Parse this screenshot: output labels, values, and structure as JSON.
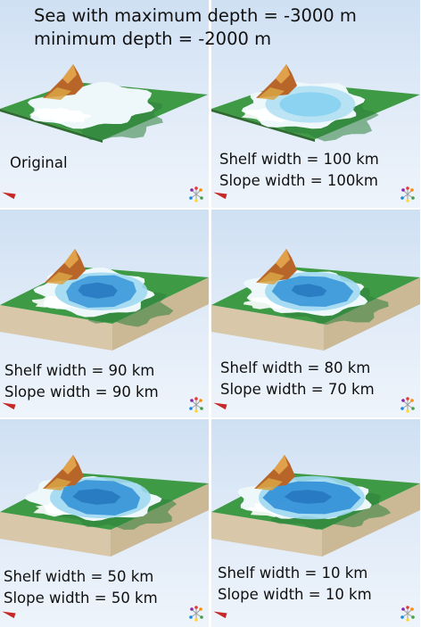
{
  "title": {
    "line1": "Sea with maximum depth = -3000 m",
    "line2": "minimum depth = -2000 m"
  },
  "panels": [
    {
      "line1": "Original",
      "line2": ""
    },
    {
      "line1": "Shelf width = 100 km",
      "line2": "Slope width = 100km"
    },
    {
      "line1": "Shelf width = 90 km",
      "line2": "Slope width = 90 km"
    },
    {
      "line1": "Shelf width = 80 km",
      "line2": "Slope width = 70 km"
    },
    {
      "line1": "Shelf width = 50 km",
      "line2": "Slope width = 50 km"
    },
    {
      "line1": "Shelf width = 10 km",
      "line2": "Slope width = 10 km"
    }
  ],
  "colors": {
    "land_green": "#3f9a45",
    "shallow_water": "#eef8fb",
    "deep_water": "#2f8fd6",
    "mountain": "#b8652a",
    "base_side": "#d8c7a8",
    "axis_marker": "#c62828"
  },
  "icons": {
    "axis_marker": "red-axis-marker-icon",
    "orientation": "orientation-triad-icon"
  }
}
